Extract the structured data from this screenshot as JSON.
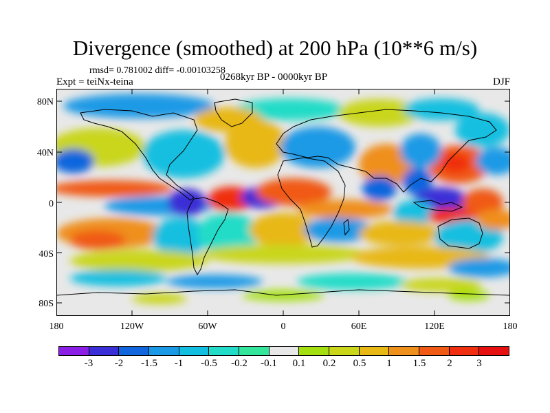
{
  "title": "Divergence (smoothed) at 200 hPa (10**6 m/s)",
  "stats": "rmsd= 0.781002 diff= -0.00103258",
  "experiment": "Expt = teiNx-teina",
  "period": "0268kyr BP - 0000kyr BP",
  "season": "DJF",
  "y_ticks": [
    "80N",
    "40N",
    "0",
    "40S",
    "80S"
  ],
  "x_ticks": [
    "180",
    "120W",
    "60W",
    "0",
    "60E",
    "120E",
    "180"
  ],
  "colorbar": {
    "labels": [
      "-3",
      "-2",
      "-1.5",
      "-1",
      "-0.5",
      "-0.2",
      "-0.1",
      "0.1",
      "0.2",
      "0.5",
      "1",
      "1.5",
      "2",
      "3"
    ],
    "colors": [
      "#8b1fe6",
      "#3a2fd6",
      "#1166dd",
      "#1a9ae6",
      "#12bfe0",
      "#22dcc8",
      "#34e69b",
      "#e8e8e8",
      "#a4e010",
      "#c9d61a",
      "#e8b814",
      "#ef8f1c",
      "#f05a14",
      "#f02e10",
      "#e61010"
    ]
  },
  "colors": {
    "ocean_bg": "#e8e8e8",
    "coast": "#000000",
    "frame": "#000000"
  }
}
